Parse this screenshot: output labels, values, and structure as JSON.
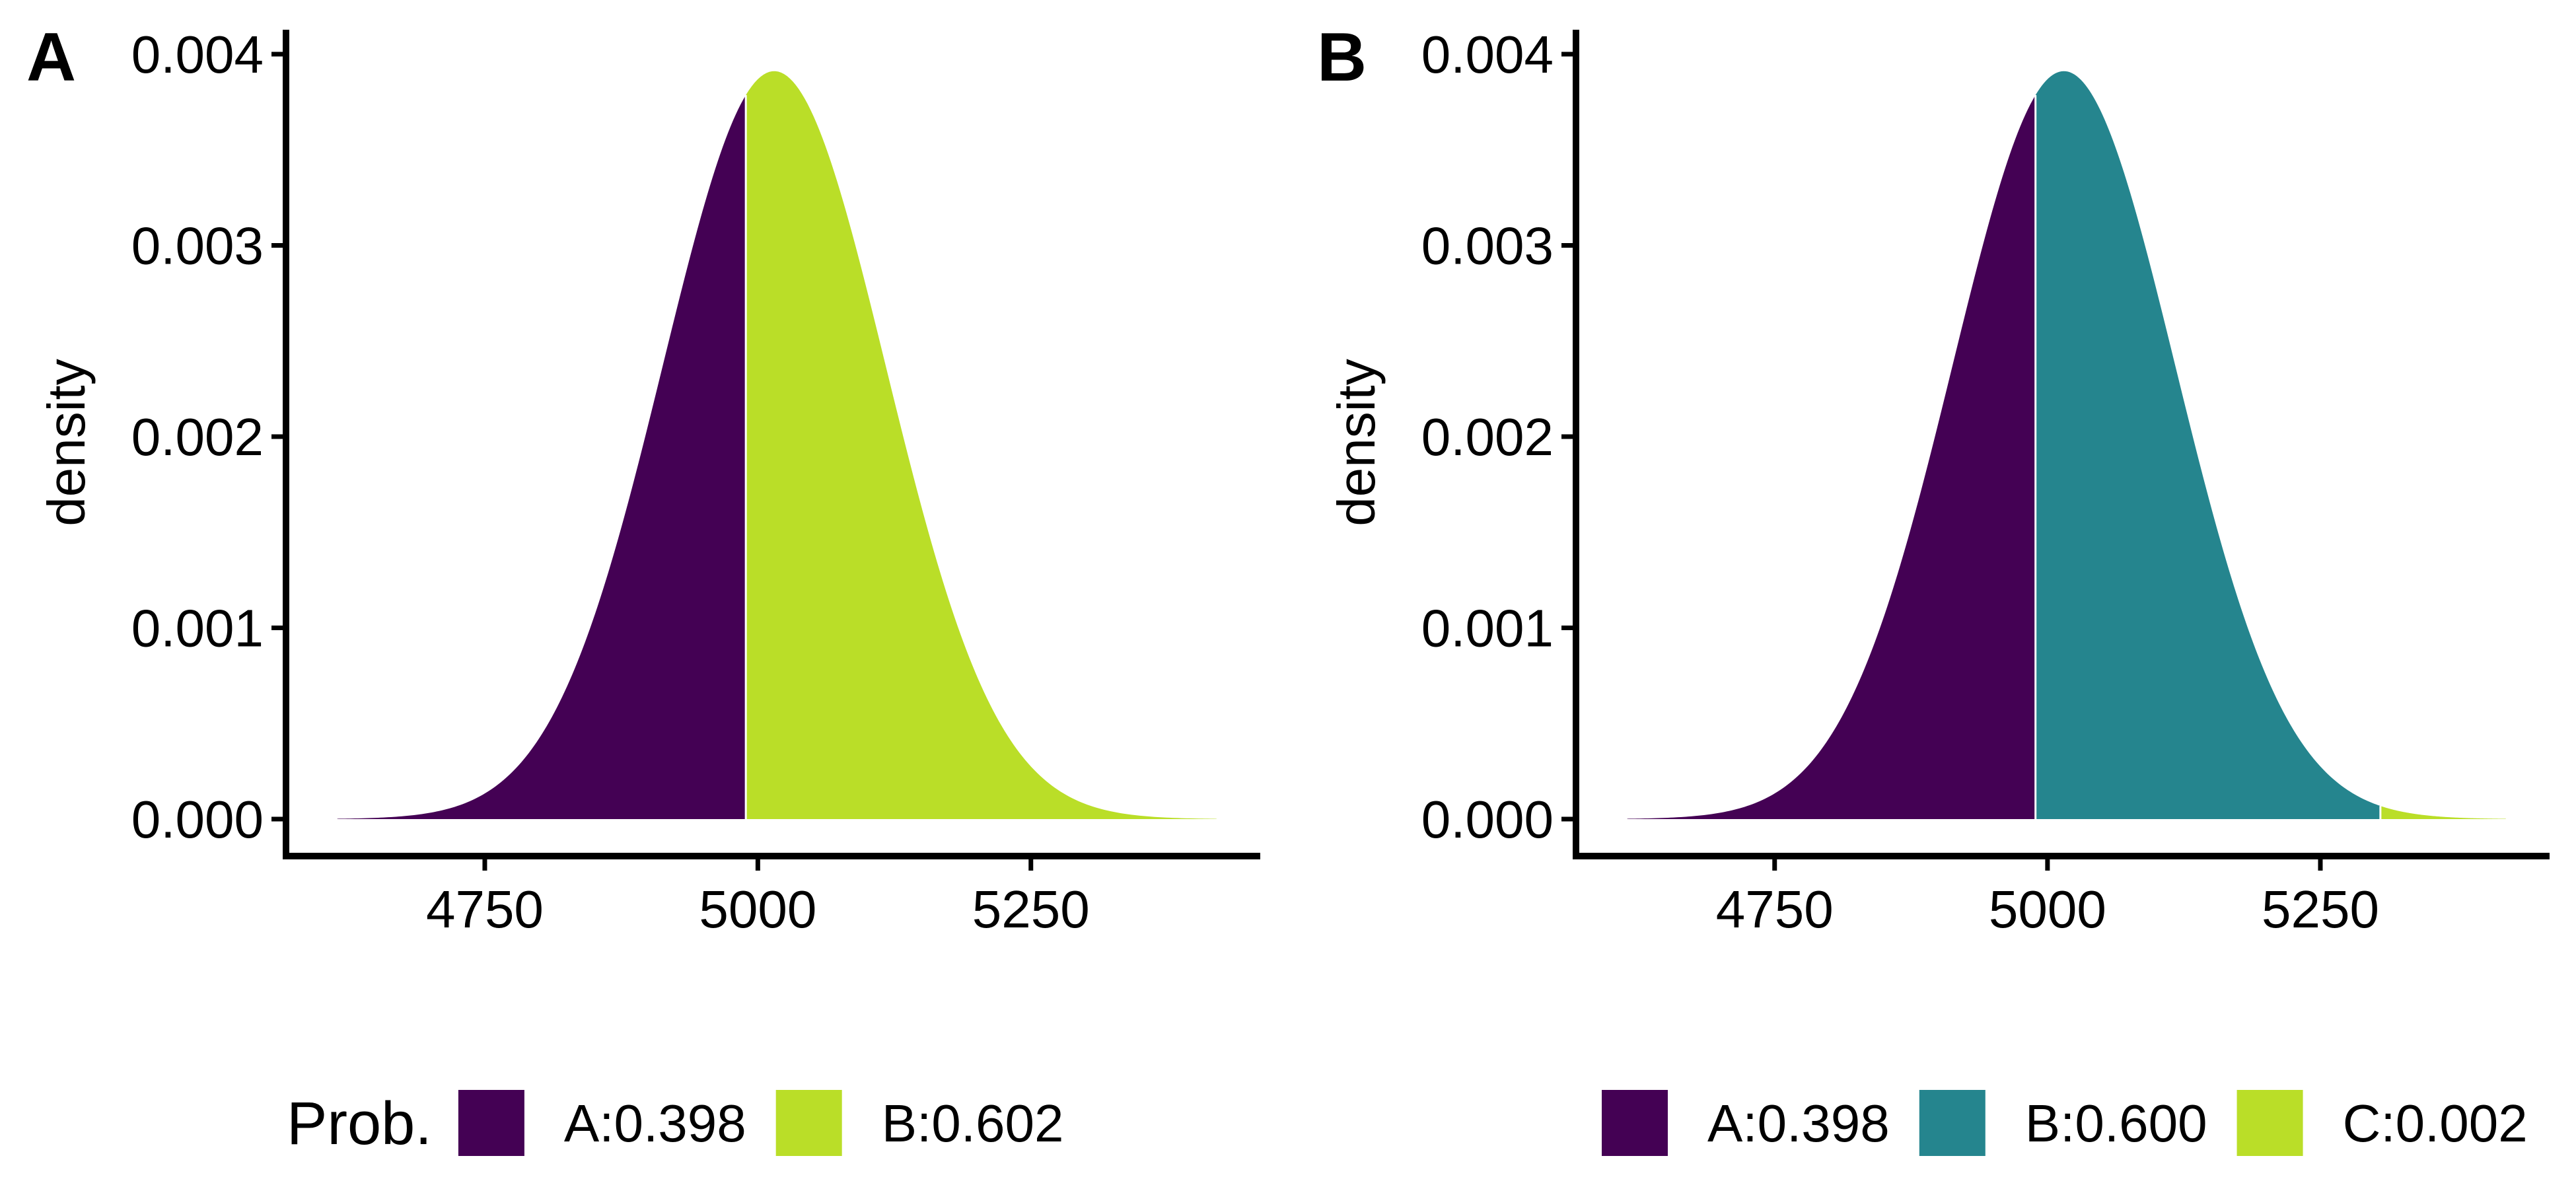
{
  "chart_data": [
    {
      "type": "area",
      "panel_label": "A",
      "ylabel": "density",
      "xlabel": "",
      "distribution": {
        "family": "normal",
        "mean": 5015,
        "sd": 102
      },
      "x_range": [
        4615,
        5420
      ],
      "xlim": [
        4568,
        5460
      ],
      "ylim": [
        0,
        0.004
      ],
      "x_ticks": [
        4750,
        5000,
        5250
      ],
      "y_ticks": [
        0,
        0.001,
        0.002,
        0.003,
        0.004
      ],
      "x_tick_labels": [
        "4750",
        "5000",
        "5250"
      ],
      "y_tick_labels": [
        "0.000",
        "0.001",
        "0.002",
        "0.003",
        "0.004"
      ],
      "regions": [
        {
          "name": "A:0.398",
          "from": 4615,
          "to": 4989,
          "color": "#440154"
        },
        {
          "name": "B:0.602",
          "from": 4989,
          "to": 5420,
          "color": "#BADE28"
        }
      ],
      "legend": {
        "title": "Prob.",
        "position": "bottom"
      },
      "grid": false
    },
    {
      "type": "area",
      "panel_label": "B",
      "ylabel": "density",
      "xlabel": "",
      "distribution": {
        "family": "normal",
        "mean": 5015,
        "sd": 102
      },
      "x_range": [
        4615,
        5420
      ],
      "xlim": [
        4568,
        5460
      ],
      "ylim": [
        0,
        0.004
      ],
      "x_ticks": [
        4750,
        5000,
        5250
      ],
      "y_ticks": [
        0,
        0.001,
        0.002,
        0.003,
        0.004
      ],
      "x_tick_labels": [
        "4750",
        "5000",
        "5250"
      ],
      "y_tick_labels": [
        "0.000",
        "0.001",
        "0.002",
        "0.003",
        "0.004"
      ],
      "regions": [
        {
          "name": "A:0.398",
          "from": 4615,
          "to": 4989,
          "color": "#440154"
        },
        {
          "name": "B:0.600",
          "from": 4989,
          "to": 5305,
          "color": "#25858E"
        },
        {
          "name": "C:0.002",
          "from": 5305,
          "to": 5420,
          "color": "#BADE28"
        }
      ],
      "legend": {
        "title": "",
        "position": "bottom"
      },
      "grid": false
    }
  ]
}
